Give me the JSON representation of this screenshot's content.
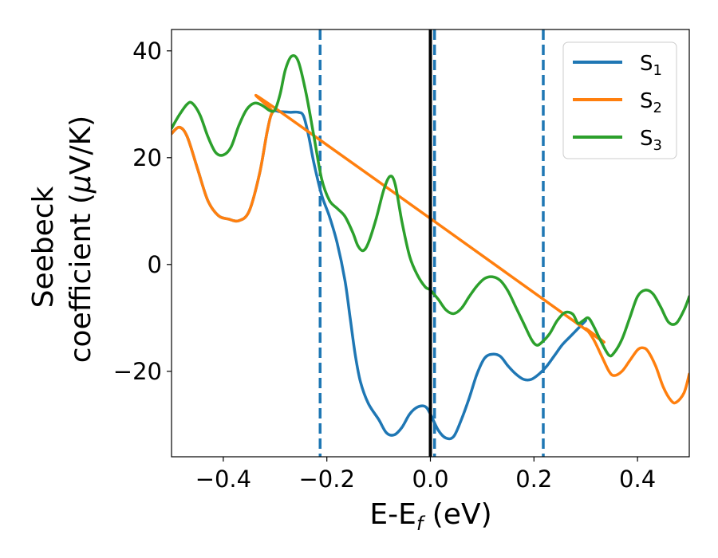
{
  "chart_data": {
    "type": "line",
    "xlabel": {
      "base": "E-E",
      "sub": "f",
      "rest": " (eV)"
    },
    "ylabel": {
      "line1": "Seebeck",
      "line2_pre": "coefficient  (",
      "line2_mu": "μ",
      "line2_post": "V/K)"
    },
    "xlim": [
      -0.5,
      0.5
    ],
    "ylim": [
      -36,
      44
    ],
    "xticks": [
      -0.4,
      -0.2,
      0.0,
      0.2,
      0.4
    ],
    "xtick_labels": [
      "−0.4",
      "−0.2",
      "0.0",
      "0.2",
      "0.4"
    ],
    "yticks": [
      -20,
      0,
      20,
      40
    ],
    "ytick_labels": [
      "−20",
      "0",
      "20",
      "40"
    ],
    "grid": false,
    "legend_position": "top-right",
    "vlines": [
      {
        "x": 0.0,
        "style": "solid",
        "color": "#000000"
      },
      {
        "x": -0.213,
        "style": "dashed",
        "color": "#1f77b4"
      },
      {
        "x": 0.008,
        "style": "dashed",
        "color": "#1f77b4"
      },
      {
        "x": 0.218,
        "style": "dashed",
        "color": "#1f77b4"
      }
    ],
    "series": [
      {
        "name": {
          "base": "S",
          "sub": "1"
        },
        "color": "#1f77b4",
        "points": [
          [
            -0.5,
            24.5
          ],
          [
            -0.485,
            25.7
          ],
          [
            -0.47,
            24
          ],
          [
            -0.45,
            18
          ],
          [
            -0.43,
            12
          ],
          [
            -0.41,
            9.2
          ],
          [
            -0.39,
            8.5
          ],
          [
            -0.37,
            8.2
          ],
          [
            -0.35,
            10
          ],
          [
            -0.33,
            17
          ],
          [
            -0.315,
            25
          ],
          [
            -0.305,
            28.5
          ],
          [
            -0.29,
            28.6
          ],
          [
            -0.27,
            28.5
          ],
          [
            -0.255,
            28.5
          ],
          [
            -0.245,
            27.8
          ],
          [
            -0.235,
            24
          ],
          [
            -0.225,
            19
          ],
          [
            -0.21,
            13
          ],
          [
            -0.195,
            9
          ],
          [
            -0.18,
            4
          ],
          [
            -0.165,
            -3
          ],
          [
            -0.155,
            -10
          ],
          [
            -0.145,
            -17
          ],
          [
            -0.135,
            -22
          ],
          [
            -0.12,
            -26
          ],
          [
            -0.1,
            -29
          ],
          [
            -0.085,
            -31.5
          ],
          [
            -0.07,
            -31.9
          ],
          [
            -0.055,
            -30.5
          ],
          [
            -0.04,
            -28
          ],
          [
            -0.025,
            -26.7
          ],
          [
            -0.01,
            -26.6
          ],
          [
            0.0,
            -28
          ],
          [
            0.015,
            -31
          ],
          [
            0.03,
            -32.5
          ],
          [
            0.045,
            -32.2
          ],
          [
            0.06,
            -29
          ],
          [
            0.075,
            -25
          ],
          [
            0.09,
            -20.5
          ],
          [
            0.105,
            -17.5
          ],
          [
            0.12,
            -16.8
          ],
          [
            0.135,
            -17.2
          ],
          [
            0.15,
            -19
          ],
          [
            0.165,
            -20.5
          ],
          [
            0.18,
            -21.5
          ],
          [
            0.195,
            -21.5
          ],
          [
            0.21,
            -20.5
          ],
          [
            0.225,
            -19
          ],
          [
            0.24,
            -17
          ],
          [
            0.255,
            -15
          ],
          [
            0.27,
            -13.5
          ],
          [
            0.29,
            -11.5
          ],
          [
            0.3,
            -10.5
          ]
        ]
      },
      {
        "name": {
          "base": "S",
          "sub": "2"
        },
        "color": "#ff7f0e",
        "points": [
          [
            -0.5,
            24.5
          ],
          [
            -0.485,
            25.7
          ],
          [
            -0.47,
            24
          ],
          [
            -0.45,
            18
          ],
          [
            -0.43,
            12
          ],
          [
            -0.41,
            9.2
          ],
          [
            -0.39,
            8.5
          ],
          [
            -0.37,
            8.2
          ],
          [
            -0.35,
            10
          ],
          [
            -0.33,
            17
          ],
          [
            -0.315,
            25
          ],
          [
            -0.305,
            28.5
          ],
          [
            -0.29,
            28.6
          ],
          [
            0.29,
            -11.5
          ],
          [
            0.3,
            -12
          ],
          [
            0.315,
            -14
          ],
          [
            0.33,
            -17
          ],
          [
            0.345,
            -20
          ],
          [
            0.355,
            -20.8
          ],
          [
            0.37,
            -20
          ],
          [
            0.385,
            -18
          ],
          [
            0.4,
            -16
          ],
          [
            0.41,
            -15.6
          ],
          [
            0.42,
            -16.2
          ],
          [
            0.435,
            -19
          ],
          [
            0.45,
            -23
          ],
          [
            0.465,
            -25.5
          ],
          [
            0.475,
            -25.8
          ],
          [
            0.49,
            -24
          ],
          [
            0.5,
            -20.5
          ]
        ]
      },
      {
        "name": {
          "base": "S",
          "sub": "3"
        },
        "color": "#2ca02c",
        "points": [
          [
            -0.5,
            25.5
          ],
          [
            -0.485,
            28
          ],
          [
            -0.47,
            30
          ],
          [
            -0.46,
            30.2
          ],
          [
            -0.445,
            28
          ],
          [
            -0.43,
            24
          ],
          [
            -0.415,
            21
          ],
          [
            -0.4,
            20.5
          ],
          [
            -0.385,
            22
          ],
          [
            -0.37,
            26
          ],
          [
            -0.355,
            29
          ],
          [
            -0.34,
            30.2
          ],
          [
            -0.325,
            29.8
          ],
          [
            -0.31,
            28.8
          ],
          [
            -0.3,
            29
          ],
          [
            -0.29,
            32
          ],
          [
            -0.28,
            36.5
          ],
          [
            -0.268,
            39
          ],
          [
            -0.255,
            38
          ],
          [
            -0.24,
            32
          ],
          [
            -0.225,
            24
          ],
          [
            -0.21,
            16
          ],
          [
            -0.195,
            12
          ],
          [
            -0.18,
            10.5
          ],
          [
            -0.165,
            9
          ],
          [
            -0.15,
            6
          ],
          [
            -0.14,
            3.5
          ],
          [
            -0.13,
            2.6
          ],
          [
            -0.12,
            4
          ],
          [
            -0.105,
            8.5
          ],
          [
            -0.09,
            14
          ],
          [
            -0.078,
            16.5
          ],
          [
            -0.068,
            15
          ],
          [
            -0.055,
            8
          ],
          [
            -0.04,
            1.5
          ],
          [
            -0.025,
            -2
          ],
          [
            -0.01,
            -4.2
          ],
          [
            0.0,
            -4.8
          ],
          [
            0.015,
            -6.5
          ],
          [
            0.03,
            -8.5
          ],
          [
            0.045,
            -9.2
          ],
          [
            0.06,
            -8.2
          ],
          [
            0.075,
            -6
          ],
          [
            0.09,
            -4
          ],
          [
            0.105,
            -2.6
          ],
          [
            0.12,
            -2.3
          ],
          [
            0.135,
            -3
          ],
          [
            0.15,
            -5
          ],
          [
            0.165,
            -8
          ],
          [
            0.18,
            -11
          ],
          [
            0.195,
            -14
          ],
          [
            0.205,
            -15.1
          ],
          [
            0.215,
            -14.6
          ],
          [
            0.23,
            -13
          ],
          [
            0.245,
            -10.5
          ],
          [
            0.26,
            -9
          ],
          [
            0.275,
            -9.3
          ],
          [
            0.285,
            -11
          ],
          [
            0.295,
            -10.5
          ],
          [
            0.305,
            -10
          ],
          [
            0.315,
            -11.5
          ],
          [
            0.33,
            -14.5
          ],
          [
            0.345,
            -17
          ],
          [
            0.355,
            -16.5
          ],
          [
            0.37,
            -14
          ],
          [
            0.385,
            -10
          ],
          [
            0.4,
            -6
          ],
          [
            0.415,
            -4.8
          ],
          [
            0.43,
            -5.5
          ],
          [
            0.445,
            -8
          ],
          [
            0.46,
            -10.8
          ],
          [
            0.475,
            -11
          ],
          [
            0.49,
            -8.5
          ],
          [
            0.5,
            -6
          ]
        ]
      }
    ]
  }
}
